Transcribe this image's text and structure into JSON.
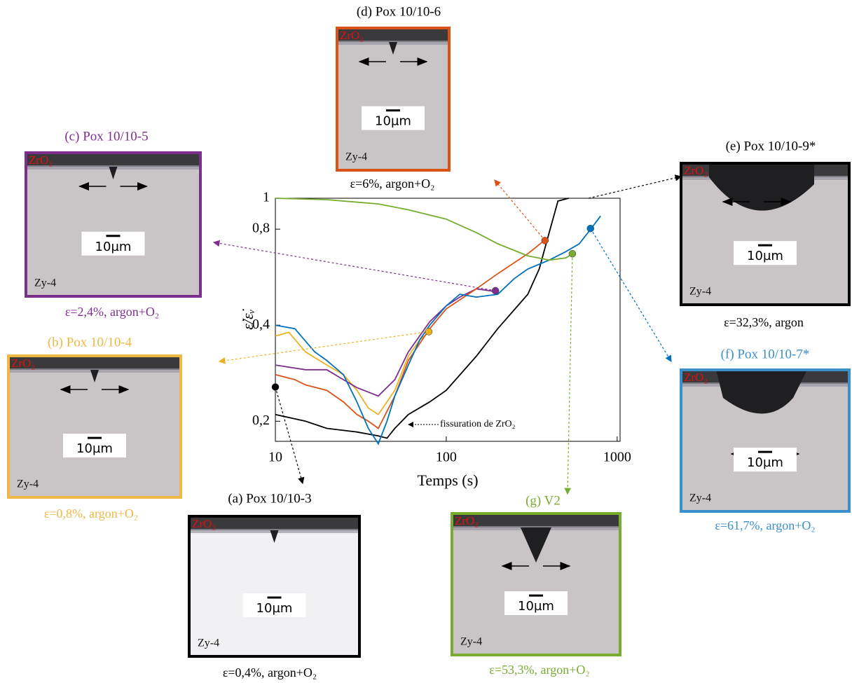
{
  "chart_data": {
    "type": "line",
    "xlabel": "Temps (s)",
    "ylabel": "ε̇/ε̇ᵥ",
    "xscale": "log",
    "yscale": "log",
    "xlim": [
      10,
      1040
    ],
    "ylim": [
      0.173,
      1
    ],
    "xticks": [
      10,
      100,
      1000
    ],
    "yticks": [
      {
        "value": 0.2,
        "label": "0,2"
      },
      {
        "value": 0.4,
        "label": "0,4"
      },
      {
        "value": 0.8,
        "label": "0,8"
      },
      1
    ],
    "annotation": "fissuration de ZrO₂",
    "series": [
      {
        "color": "#000000",
        "x": [
          10,
          15,
          20,
          30,
          40,
          45,
          50,
          60,
          80,
          100,
          150,
          200,
          300,
          350,
          400,
          450,
          520
        ],
        "values": [
          0.21,
          0.2,
          0.19,
          0.185,
          0.18,
          0.177,
          0.19,
          0.21,
          0.23,
          0.25,
          0.32,
          0.39,
          0.5,
          0.6,
          0.78,
          0.98,
          1.0
        ],
        "marker_x": 10,
        "marker_y": 0.256
      },
      {
        "color": "#edb120",
        "x": [
          10,
          12,
          15,
          20,
          25,
          30,
          35,
          40,
          50,
          60,
          70,
          79
        ],
        "values": [
          0.37,
          0.38,
          0.33,
          0.3,
          0.28,
          0.25,
          0.22,
          0.21,
          0.25,
          0.32,
          0.36,
          0.38
        ],
        "marker_x": 79,
        "marker_y": 0.382
      },
      {
        "color": "#7e2f8e",
        "x": [
          10,
          15,
          20,
          25,
          30,
          40,
          50,
          60,
          80,
          100,
          120,
          150,
          194
        ],
        "values": [
          0.3,
          0.29,
          0.29,
          0.27,
          0.255,
          0.24,
          0.27,
          0.33,
          0.41,
          0.46,
          0.49,
          0.52,
          0.51
        ],
        "marker_x": 194,
        "marker_y": 0.513
      },
      {
        "color": "#d95319",
        "x": [
          10,
          13,
          15,
          20,
          25,
          30,
          35,
          40,
          50,
          60,
          80,
          100,
          150,
          200,
          300,
          378
        ],
        "values": [
          0.28,
          0.27,
          0.26,
          0.25,
          0.23,
          0.21,
          0.2,
          0.19,
          0.24,
          0.31,
          0.39,
          0.45,
          0.52,
          0.58,
          0.67,
          0.74
        ],
        "marker_x": 378,
        "marker_y": 0.737
      },
      {
        "color": "#0072bd",
        "x": [
          10,
          13,
          17,
          20,
          25,
          30,
          35,
          40,
          45,
          50,
          60,
          70,
          80,
          100,
          120,
          150,
          200,
          250,
          300,
          400,
          500,
          600,
          700,
          800
        ],
        "values": [
          0.4,
          0.39,
          0.33,
          0.31,
          0.28,
          0.23,
          0.19,
          0.17,
          0.2,
          0.24,
          0.3,
          0.36,
          0.4,
          0.46,
          0.5,
          0.49,
          0.5,
          0.56,
          0.6,
          0.64,
          0.68,
          0.72,
          0.8,
          0.88
        ],
        "marker_x": 698,
        "marker_y": 0.804
      },
      {
        "color": "#77ac30",
        "x": [
          10,
          20,
          40,
          60,
          100,
          150,
          200,
          300,
          400,
          500,
          547
        ],
        "values": [
          1.0,
          0.99,
          0.96,
          0.92,
          0.86,
          0.78,
          0.72,
          0.66,
          0.64,
          0.65,
          0.67
        ],
        "marker_x": 547,
        "marker_y": 0.67
      }
    ]
  },
  "panels": [
    {
      "title": "(a) Pox 10/10-3",
      "caption": "ε=0,4%, argon+O₂",
      "oxide": "ZrO₂",
      "metal": "Zy-4",
      "scale": "10µm",
      "color": "#000000",
      "text_color": "#000000"
    },
    {
      "title": "(b) Pox 10/10-4",
      "caption": "ε=0,8%, argon+O₂",
      "oxide": "ZrO₂",
      "metal": "Zy-4",
      "scale": "10µm",
      "color": "#edb944",
      "text_color": "#edb944"
    },
    {
      "title": "(c) Pox 10/10-5",
      "caption": "ε=2,4%, argon+O₂",
      "oxide": "ZrO₂",
      "metal": "Zy-4",
      "scale": "10µm",
      "color": "#7e2f8e",
      "text_color": "#7e2f8e"
    },
    {
      "title": "(d) Pox 10/10-6",
      "caption": "ε=6%, argon+O₂",
      "oxide": "ZrO₂",
      "metal": "Zy-4",
      "scale": "10µm",
      "color": "#d95319",
      "text_color": "#000000"
    },
    {
      "title": "(e) Pox 10/10-9*",
      "caption": "ε=32,3%, argon",
      "oxide": "ZrO₂",
      "metal": "Zy-4",
      "scale": "10µm",
      "color": "#000000",
      "text_color": "#000000"
    },
    {
      "title": "(f) Pox 10/10-7*",
      "caption": "ε=61,7%, argon+O₂",
      "oxide": "ZrO₂",
      "metal": "Zy-4",
      "scale": "10µm",
      "color": "#3b8fca",
      "text_color": "#3b8fca"
    },
    {
      "title": "(g) V2",
      "caption": "ε=53,3%, argon+O₂",
      "oxide": "ZrO₂",
      "metal": "Zy-4",
      "scale": "10µm",
      "color": "#77ac30",
      "text_color": "#77ac30"
    }
  ]
}
